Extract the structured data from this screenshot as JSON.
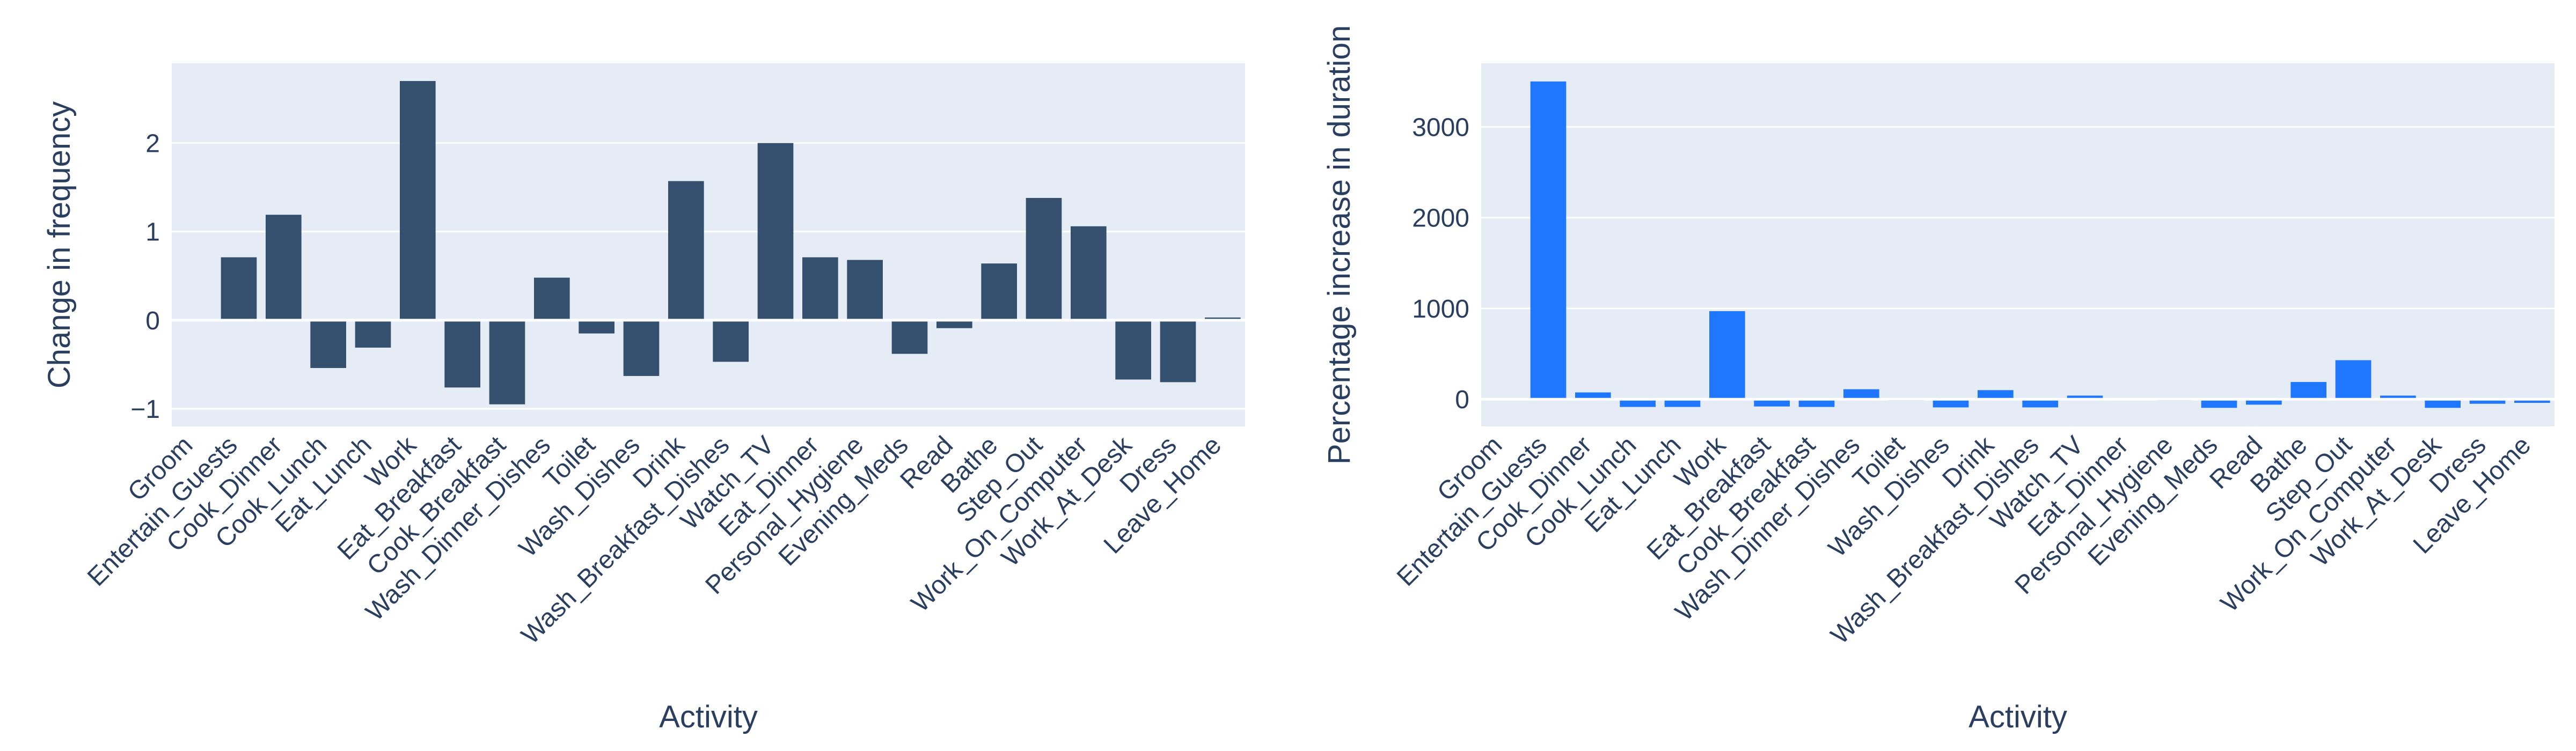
{
  "chart_data": [
    {
      "type": "bar",
      "xlabel": "Activity",
      "ylabel": "Change in frequency",
      "ylim": [
        -1.2,
        2.9
      ],
      "yticks": [
        -1,
        0,
        1,
        2
      ],
      "ytick_labels": [
        "−1",
        "0",
        "1",
        "2"
      ],
      "grid": true,
      "bar_color": "#34506e",
      "plot_bg": "#e5ecf6",
      "categories": [
        "Groom",
        "Entertain_Guests",
        "Cook_Dinner",
        "Cook_Lunch",
        "Eat_Lunch",
        "Work",
        "Eat_Breakfast",
        "Cook_Breakfast",
        "Wash_Dinner_Dishes",
        "Toilet",
        "Wash_Dishes",
        "Drink",
        "Wash_Breakfast_Dishes",
        "Watch_TV",
        "Eat_Dinner",
        "Personal_Hygiene",
        "Evening_Meds",
        "Read",
        "Bathe",
        "Step_Out",
        "Work_On_Computer",
        "Work_At_Desk",
        "Dress",
        "Leave_Home"
      ],
      "values": [
        -0.01,
        0.71,
        1.19,
        -0.54,
        -0.31,
        2.7,
        -0.76,
        -0.95,
        0.48,
        -0.15,
        -0.63,
        1.57,
        -0.47,
        2.0,
        0.71,
        0.68,
        -0.38,
        -0.09,
        0.64,
        1.38,
        1.06,
        -0.67,
        -0.7,
        0.03
      ]
    },
    {
      "type": "bar",
      "xlabel": "Activity",
      "ylabel": "Percentage increase in duration",
      "ylim": [
        -300,
        3700
      ],
      "yticks": [
        0,
        1000,
        2000,
        3000
      ],
      "ytick_labels": [
        "0",
        "1000",
        "2000",
        "3000"
      ],
      "grid": true,
      "bar_color": "#1f77ff",
      "plot_bg": "#e5ecf6",
      "categories": [
        "Groom",
        "Entertain_Guests",
        "Cook_Dinner",
        "Cook_Lunch",
        "Eat_Lunch",
        "Work",
        "Eat_Breakfast",
        "Cook_Breakfast",
        "Wash_Dinner_Dishes",
        "Toilet",
        "Wash_Dishes",
        "Drink",
        "Wash_Breakfast_Dishes",
        "Watch_TV",
        "Eat_Dinner",
        "Personal_Hygiene",
        "Evening_Meds",
        "Read",
        "Bathe",
        "Step_Out",
        "Work_On_Computer",
        "Work_At_Desk",
        "Dress",
        "Leave_Home"
      ],
      "values": [
        -10,
        3500,
        75,
        -85,
        -85,
        970,
        -80,
        -85,
        110,
        -15,
        -90,
        100,
        -90,
        40,
        -5,
        -15,
        -95,
        -60,
        190,
        430,
        40,
        -95,
        -50,
        -40
      ]
    }
  ]
}
